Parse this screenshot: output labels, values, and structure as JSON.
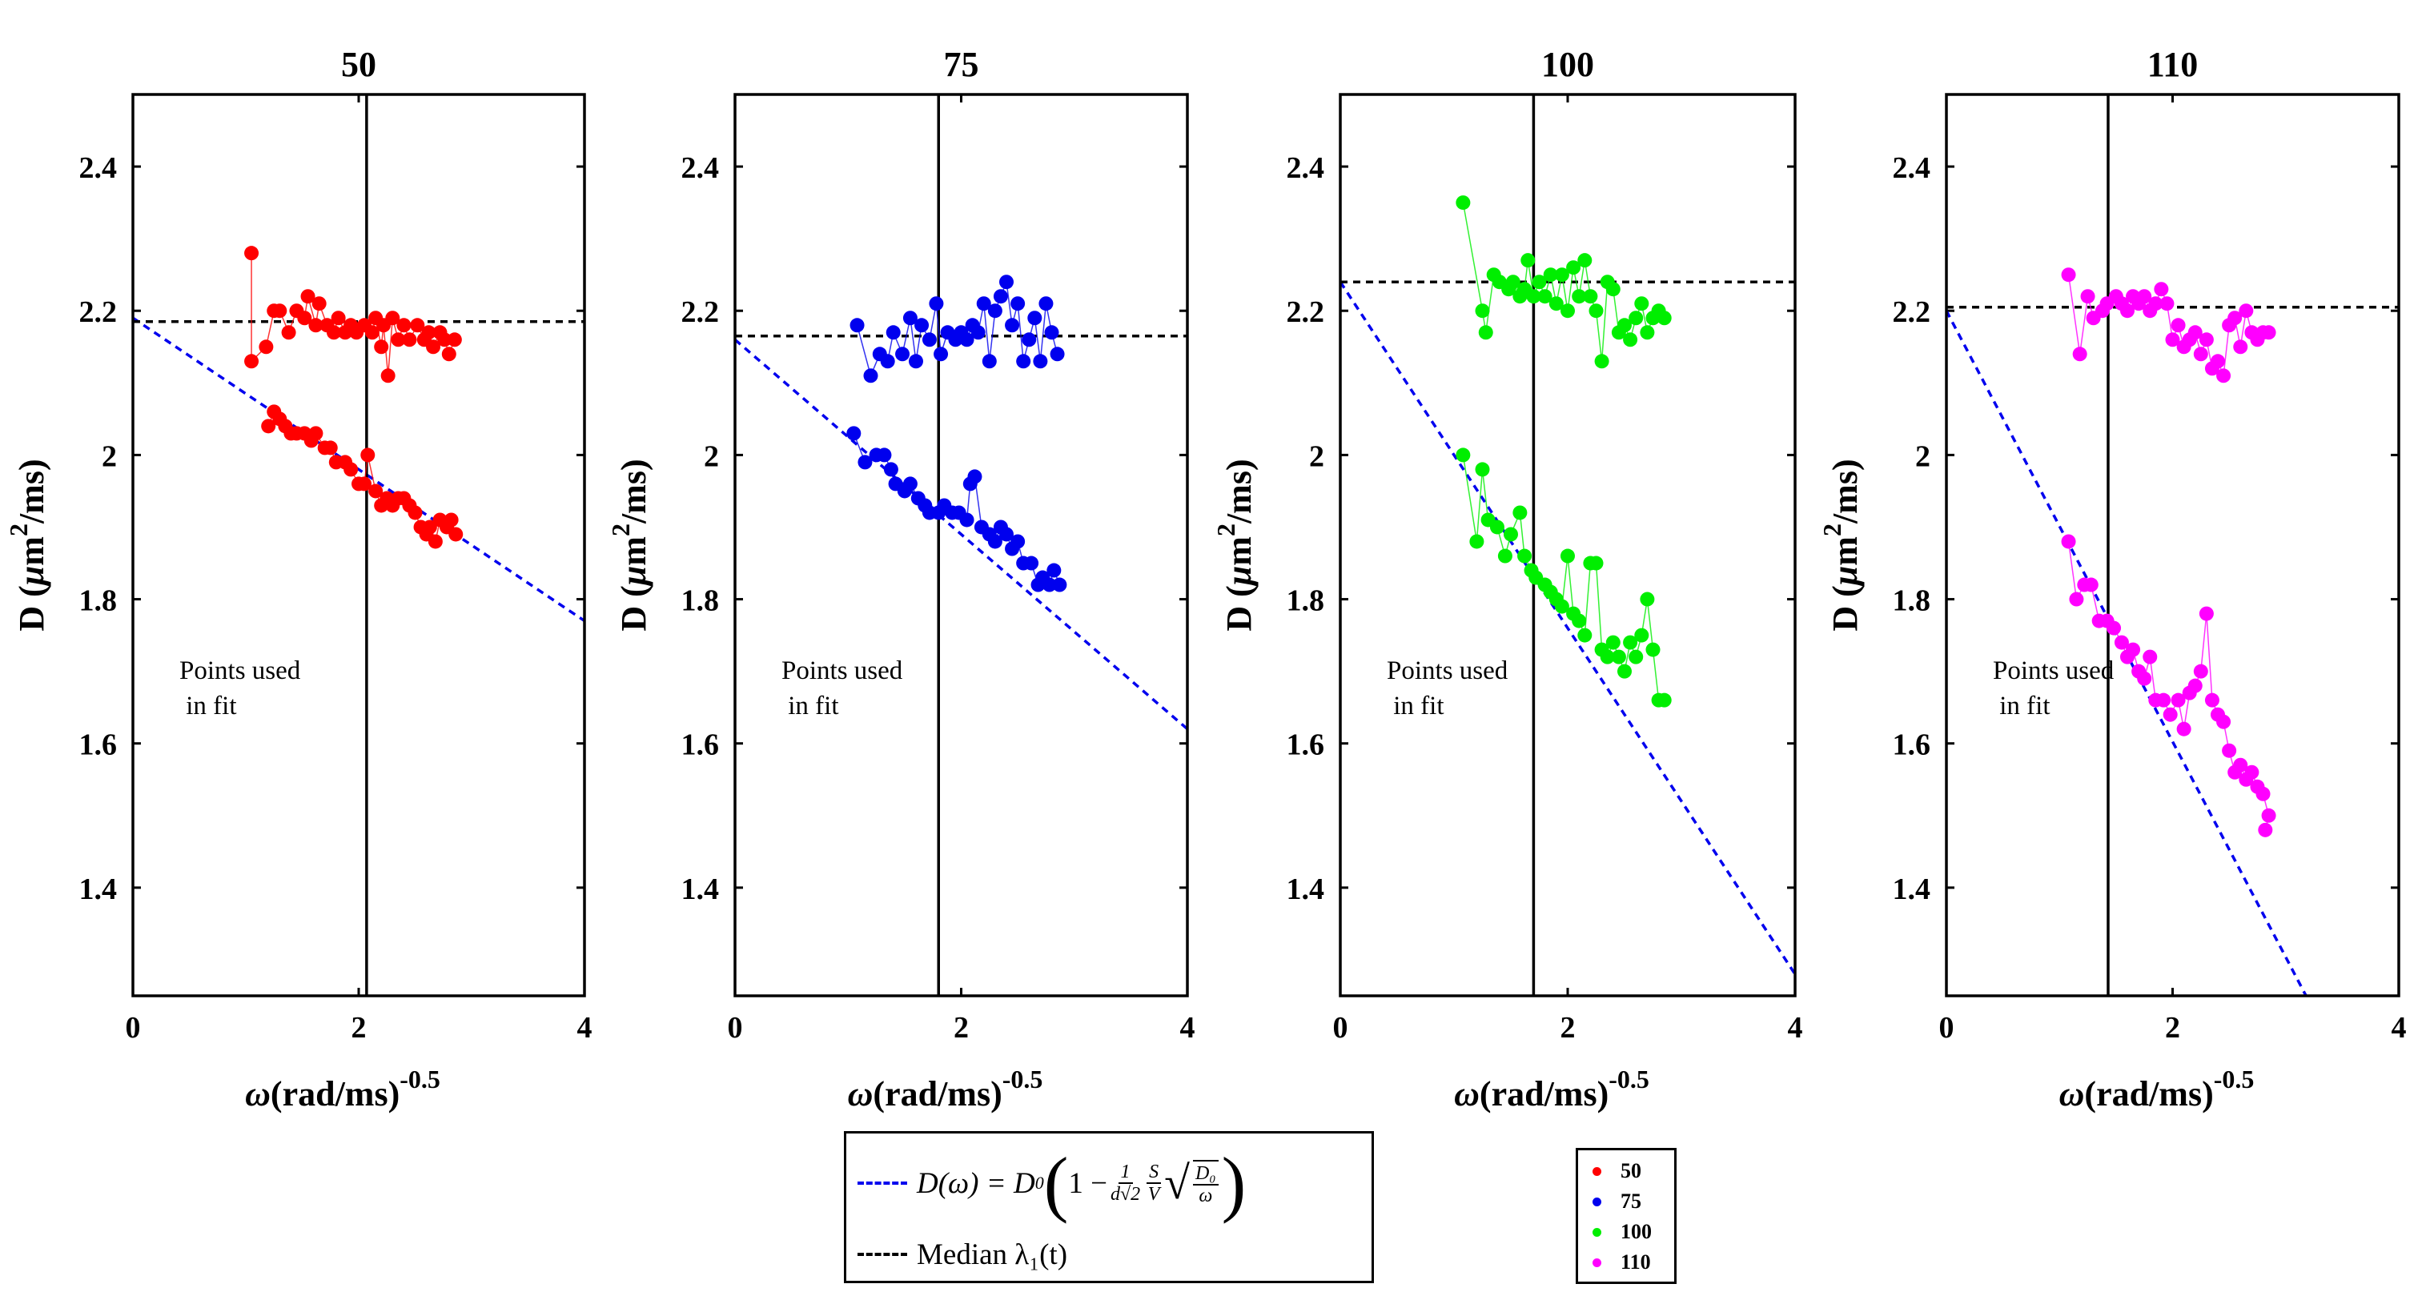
{
  "chart_data": [
    {
      "type": "scatter",
      "title": "50",
      "xlabel": "ω(rad/ms)",
      "xlabel_exponent": "-0.5",
      "ylabel": "D (μm²/ms)",
      "xlim": [
        0,
        4
      ],
      "ylim": [
        1.25,
        2.5
      ],
      "xticks": [
        "0",
        "2",
        "4"
      ],
      "yticks": [
        "1.4",
        "1.6",
        "1.8",
        "2",
        "2.2",
        "2.4"
      ],
      "color": "#ff0000",
      "vertical_line_x": 2.07,
      "median_y": 2.185,
      "fit_line": [
        [
          0,
          2.19
        ],
        [
          4,
          1.77
        ]
      ],
      "annotation": "Points used\n in fit",
      "upper_series": [
        [
          1.05,
          2.28
        ],
        [
          1.05,
          2.13
        ],
        [
          1.18,
          2.15
        ],
        [
          1.25,
          2.2
        ],
        [
          1.3,
          2.2
        ],
        [
          1.38,
          2.17
        ],
        [
          1.45,
          2.2
        ],
        [
          1.52,
          2.19
        ],
        [
          1.55,
          2.22
        ],
        [
          1.62,
          2.18
        ],
        [
          1.65,
          2.21
        ],
        [
          1.72,
          2.18
        ],
        [
          1.78,
          2.17
        ],
        [
          1.82,
          2.19
        ],
        [
          1.88,
          2.17
        ],
        [
          1.93,
          2.18
        ],
        [
          1.98,
          2.17
        ],
        [
          2.05,
          2.18
        ],
        [
          2.12,
          2.17
        ],
        [
          2.15,
          2.19
        ],
        [
          2.2,
          2.15
        ],
        [
          2.22,
          2.18
        ],
        [
          2.26,
          2.11
        ],
        [
          2.3,
          2.19
        ],
        [
          2.35,
          2.16
        ],
        [
          2.4,
          2.18
        ],
        [
          2.45,
          2.16
        ],
        [
          2.52,
          2.18
        ],
        [
          2.58,
          2.16
        ],
        [
          2.62,
          2.17
        ],
        [
          2.66,
          2.15
        ],
        [
          2.72,
          2.17
        ],
        [
          2.76,
          2.16
        ],
        [
          2.8,
          2.14
        ],
        [
          2.85,
          2.16
        ]
      ],
      "lower_series": [
        [
          1.2,
          2.04
        ],
        [
          1.25,
          2.06
        ],
        [
          1.3,
          2.05
        ],
        [
          1.35,
          2.04
        ],
        [
          1.4,
          2.03
        ],
        [
          1.45,
          2.03
        ],
        [
          1.52,
          2.03
        ],
        [
          1.58,
          2.02
        ],
        [
          1.62,
          2.03
        ],
        [
          1.7,
          2.01
        ],
        [
          1.75,
          2.01
        ],
        [
          1.8,
          1.99
        ],
        [
          1.88,
          1.99
        ],
        [
          1.93,
          1.98
        ],
        [
          2.0,
          1.96
        ],
        [
          2.05,
          1.96
        ],
        [
          2.08,
          2.0
        ],
        [
          2.15,
          1.95
        ],
        [
          2.2,
          1.93
        ],
        [
          2.25,
          1.94
        ],
        [
          2.3,
          1.93
        ],
        [
          2.35,
          1.94
        ],
        [
          2.4,
          1.94
        ],
        [
          2.45,
          1.93
        ],
        [
          2.5,
          1.92
        ],
        [
          2.55,
          1.9
        ],
        [
          2.6,
          1.89
        ],
        [
          2.63,
          1.9
        ],
        [
          2.68,
          1.88
        ],
        [
          2.72,
          1.91
        ],
        [
          2.78,
          1.9
        ],
        [
          2.82,
          1.91
        ],
        [
          2.86,
          1.89
        ]
      ]
    },
    {
      "type": "scatter",
      "title": "75",
      "xlabel": "ω(rad/ms)",
      "xlabel_exponent": "-0.5",
      "ylabel": "D (μm²/ms)",
      "xlim": [
        0,
        4
      ],
      "ylim": [
        1.25,
        2.5
      ],
      "xticks": [
        "0",
        "2",
        "4"
      ],
      "yticks": [
        "1.4",
        "1.6",
        "1.8",
        "2",
        "2.2",
        "2.4"
      ],
      "color": "#0000ee",
      "vertical_line_x": 1.8,
      "median_y": 2.165,
      "fit_line": [
        [
          0,
          2.16
        ],
        [
          4,
          1.62
        ]
      ],
      "annotation": "Points used\n in fit",
      "upper_series": [
        [
          1.08,
          2.18
        ],
        [
          1.2,
          2.11
        ],
        [
          1.28,
          2.14
        ],
        [
          1.35,
          2.13
        ],
        [
          1.4,
          2.17
        ],
        [
          1.48,
          2.14
        ],
        [
          1.55,
          2.19
        ],
        [
          1.6,
          2.13
        ],
        [
          1.65,
          2.18
        ],
        [
          1.72,
          2.16
        ],
        [
          1.78,
          2.21
        ],
        [
          1.82,
          2.14
        ],
        [
          1.88,
          2.17
        ],
        [
          1.95,
          2.16
        ],
        [
          2.0,
          2.17
        ],
        [
          2.05,
          2.16
        ],
        [
          2.1,
          2.18
        ],
        [
          2.15,
          2.17
        ],
        [
          2.2,
          2.21
        ],
        [
          2.25,
          2.13
        ],
        [
          2.3,
          2.2
        ],
        [
          2.35,
          2.22
        ],
        [
          2.4,
          2.24
        ],
        [
          2.45,
          2.18
        ],
        [
          2.5,
          2.21
        ],
        [
          2.55,
          2.13
        ],
        [
          2.6,
          2.16
        ],
        [
          2.65,
          2.19
        ],
        [
          2.7,
          2.13
        ],
        [
          2.75,
          2.21
        ],
        [
          2.8,
          2.17
        ],
        [
          2.85,
          2.14
        ]
      ],
      "lower_series": [
        [
          1.05,
          2.03
        ],
        [
          1.15,
          1.99
        ],
        [
          1.25,
          2.0
        ],
        [
          1.32,
          2.0
        ],
        [
          1.38,
          1.98
        ],
        [
          1.42,
          1.96
        ],
        [
          1.5,
          1.95
        ],
        [
          1.55,
          1.96
        ],
        [
          1.62,
          1.94
        ],
        [
          1.68,
          1.93
        ],
        [
          1.72,
          1.92
        ],
        [
          1.8,
          1.92
        ],
        [
          1.85,
          1.93
        ],
        [
          1.92,
          1.92
        ],
        [
          1.98,
          1.92
        ],
        [
          2.05,
          1.91
        ],
        [
          2.08,
          1.96
        ],
        [
          2.12,
          1.97
        ],
        [
          2.18,
          1.9
        ],
        [
          2.25,
          1.89
        ],
        [
          2.3,
          1.88
        ],
        [
          2.35,
          1.9
        ],
        [
          2.4,
          1.89
        ],
        [
          2.45,
          1.87
        ],
        [
          2.5,
          1.88
        ],
        [
          2.55,
          1.85
        ],
        [
          2.62,
          1.85
        ],
        [
          2.68,
          1.82
        ],
        [
          2.72,
          1.83
        ],
        [
          2.78,
          1.82
        ],
        [
          2.82,
          1.84
        ],
        [
          2.87,
          1.82
        ]
      ]
    },
    {
      "type": "scatter",
      "title": "100",
      "xlabel": "ω(rad/ms)",
      "xlabel_exponent": "-0.5",
      "ylabel": "D (μm²/ms)",
      "xlim": [
        0,
        4
      ],
      "ylim": [
        1.25,
        2.5
      ],
      "xticks": [
        "0",
        "2",
        "4"
      ],
      "yticks": [
        "1.4",
        "1.6",
        "1.8",
        "2",
        "2.2",
        "2.4"
      ],
      "color": "#00ee00",
      "vertical_line_x": 1.7,
      "median_y": 2.24,
      "fit_line": [
        [
          0,
          2.24
        ],
        [
          4,
          1.28
        ]
      ],
      "annotation": "Points used\n in fit",
      "upper_series": [
        [
          1.08,
          2.35
        ],
        [
          1.25,
          2.2
        ],
        [
          1.28,
          2.17
        ],
        [
          1.35,
          2.25
        ],
        [
          1.4,
          2.24
        ],
        [
          1.48,
          2.23
        ],
        [
          1.52,
          2.24
        ],
        [
          1.58,
          2.22
        ],
        [
          1.62,
          2.23
        ],
        [
          1.65,
          2.27
        ],
        [
          1.7,
          2.22
        ],
        [
          1.75,
          2.24
        ],
        [
          1.8,
          2.22
        ],
        [
          1.85,
          2.25
        ],
        [
          1.9,
          2.21
        ],
        [
          1.95,
          2.25
        ],
        [
          2.0,
          2.2
        ],
        [
          2.05,
          2.26
        ],
        [
          2.1,
          2.22
        ],
        [
          2.15,
          2.27
        ],
        [
          2.2,
          2.22
        ],
        [
          2.25,
          2.2
        ],
        [
          2.3,
          2.13
        ],
        [
          2.35,
          2.24
        ],
        [
          2.4,
          2.23
        ],
        [
          2.45,
          2.17
        ],
        [
          2.5,
          2.18
        ],
        [
          2.55,
          2.16
        ],
        [
          2.6,
          2.19
        ],
        [
          2.65,
          2.21
        ],
        [
          2.7,
          2.17
        ],
        [
          2.75,
          2.19
        ],
        [
          2.8,
          2.2
        ],
        [
          2.85,
          2.19
        ]
      ],
      "lower_series": [
        [
          1.08,
          2.0
        ],
        [
          1.2,
          1.88
        ],
        [
          1.25,
          1.98
        ],
        [
          1.3,
          1.91
        ],
        [
          1.38,
          1.9
        ],
        [
          1.45,
          1.86
        ],
        [
          1.5,
          1.89
        ],
        [
          1.58,
          1.92
        ],
        [
          1.62,
          1.86
        ],
        [
          1.68,
          1.84
        ],
        [
          1.72,
          1.83
        ],
        [
          1.8,
          1.82
        ],
        [
          1.85,
          1.81
        ],
        [
          1.9,
          1.8
        ],
        [
          1.95,
          1.79
        ],
        [
          2.0,
          1.86
        ],
        [
          2.05,
          1.78
        ],
        [
          2.1,
          1.77
        ],
        [
          2.15,
          1.75
        ],
        [
          2.2,
          1.85
        ],
        [
          2.25,
          1.85
        ],
        [
          2.3,
          1.73
        ],
        [
          2.35,
          1.72
        ],
        [
          2.4,
          1.74
        ],
        [
          2.45,
          1.72
        ],
        [
          2.5,
          1.7
        ],
        [
          2.55,
          1.74
        ],
        [
          2.6,
          1.72
        ],
        [
          2.65,
          1.75
        ],
        [
          2.7,
          1.8
        ],
        [
          2.75,
          1.73
        ],
        [
          2.8,
          1.66
        ],
        [
          2.85,
          1.66
        ]
      ]
    },
    {
      "type": "scatter",
      "title": "110",
      "xlabel": "ω(rad/ms)",
      "xlabel_exponent": "-0.5",
      "ylabel": "D (μm²/ms)",
      "xlim": [
        0,
        4
      ],
      "ylim": [
        1.25,
        2.5
      ],
      "xticks": [
        "0",
        "2",
        "4"
      ],
      "yticks": [
        "1.4",
        "1.6",
        "1.8",
        "2",
        "2.2",
        "2.4"
      ],
      "color": "#ff00ff",
      "vertical_line_x": 1.43,
      "median_y": 2.205,
      "fit_line": [
        [
          0,
          2.2
        ],
        [
          3.18,
          1.25
        ]
      ],
      "annotation": "Points used\n in fit",
      "upper_series": [
        [
          1.08,
          2.25
        ],
        [
          1.18,
          2.14
        ],
        [
          1.25,
          2.22
        ],
        [
          1.3,
          2.19
        ],
        [
          1.38,
          2.2
        ],
        [
          1.42,
          2.21
        ],
        [
          1.5,
          2.22
        ],
        [
          1.55,
          2.21
        ],
        [
          1.6,
          2.2
        ],
        [
          1.65,
          2.22
        ],
        [
          1.7,
          2.21
        ],
        [
          1.75,
          2.22
        ],
        [
          1.8,
          2.2
        ],
        [
          1.85,
          2.21
        ],
        [
          1.9,
          2.23
        ],
        [
          1.95,
          2.21
        ],
        [
          2.0,
          2.16
        ],
        [
          2.05,
          2.18
        ],
        [
          2.1,
          2.15
        ],
        [
          2.15,
          2.16
        ],
        [
          2.2,
          2.17
        ],
        [
          2.25,
          2.14
        ],
        [
          2.3,
          2.16
        ],
        [
          2.35,
          2.12
        ],
        [
          2.4,
          2.13
        ],
        [
          2.45,
          2.11
        ],
        [
          2.5,
          2.18
        ],
        [
          2.55,
          2.19
        ],
        [
          2.6,
          2.15
        ],
        [
          2.65,
          2.2
        ],
        [
          2.7,
          2.17
        ],
        [
          2.75,
          2.16
        ],
        [
          2.8,
          2.17
        ],
        [
          2.85,
          2.17
        ]
      ],
      "lower_series": [
        [
          1.08,
          1.88
        ],
        [
          1.15,
          1.8
        ],
        [
          1.22,
          1.82
        ],
        [
          1.28,
          1.82
        ],
        [
          1.35,
          1.77
        ],
        [
          1.42,
          1.77
        ],
        [
          1.48,
          1.76
        ],
        [
          1.55,
          1.74
        ],
        [
          1.6,
          1.72
        ],
        [
          1.65,
          1.73
        ],
        [
          1.7,
          1.7
        ],
        [
          1.75,
          1.69
        ],
        [
          1.8,
          1.72
        ],
        [
          1.85,
          1.66
        ],
        [
          1.92,
          1.66
        ],
        [
          1.98,
          1.64
        ],
        [
          2.05,
          1.66
        ],
        [
          2.1,
          1.62
        ],
        [
          2.15,
          1.67
        ],
        [
          2.2,
          1.68
        ],
        [
          2.25,
          1.7
        ],
        [
          2.3,
          1.78
        ],
        [
          2.35,
          1.66
        ],
        [
          2.4,
          1.64
        ],
        [
          2.45,
          1.63
        ],
        [
          2.5,
          1.59
        ],
        [
          2.55,
          1.56
        ],
        [
          2.6,
          1.57
        ],
        [
          2.65,
          1.55
        ],
        [
          2.7,
          1.56
        ],
        [
          2.75,
          1.54
        ],
        [
          2.8,
          1.53
        ],
        [
          2.85,
          1.5
        ],
        [
          2.82,
          1.48
        ]
      ]
    }
  ],
  "legend": {
    "fit_label_prefix": "D(ω) = D",
    "fit_label_sub0": "0",
    "fit_label_one_minus": "1 −",
    "fit_frac1_num": "1",
    "fit_frac1_den": "d√2",
    "fit_frac2_num": "S",
    "fit_frac2_den": "V",
    "fit_sqrt_num": "D₀",
    "fit_sqrt_den": "ω",
    "median_label": "Median λ₁(t)",
    "fit_color": "#0000ee",
    "median_color": "#000000"
  },
  "points_legend": [
    {
      "label": "50",
      "color": "#ff0000"
    },
    {
      "label": "75",
      "color": "#0000ee"
    },
    {
      "label": "100",
      "color": "#00ee00"
    },
    {
      "label": "110",
      "color": "#ff00ff"
    }
  ]
}
